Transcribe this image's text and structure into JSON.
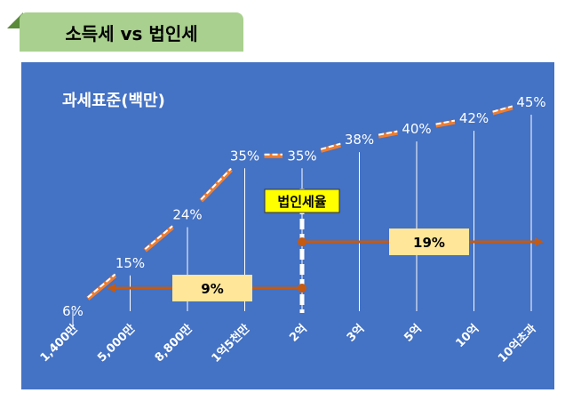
{
  "header": {
    "title": "소득세 vs 법인세"
  },
  "chart_data": {
    "type": "line",
    "title": "과세표준(백만)",
    "categories": [
      "1,400만",
      "5,000만",
      "8,800만",
      "1억5천만",
      "2억",
      "3억",
      "5억",
      "10억",
      "10억초과"
    ],
    "series": [
      {
        "values": [
          6,
          15,
          24,
          35,
          35,
          38,
          40,
          42,
          45
        ],
        "value_labels": [
          "6%",
          "15%",
          "24%",
          "35%",
          "35%",
          "38%",
          "40%",
          "42%",
          "45%"
        ]
      }
    ],
    "annotations": {
      "corp_tax_label": "법인세율",
      "low_rate_label": "9%",
      "high_rate_label": "19%",
      "boundary_category": "2억"
    },
    "colors": {
      "background": "#4472c4",
      "line_main": "#ed7d31",
      "line_highlight": "#ffffff",
      "arrow": "#c55a11",
      "label_box": "#ffe699",
      "tag_box": "#ffff00"
    },
    "grid": false
  }
}
